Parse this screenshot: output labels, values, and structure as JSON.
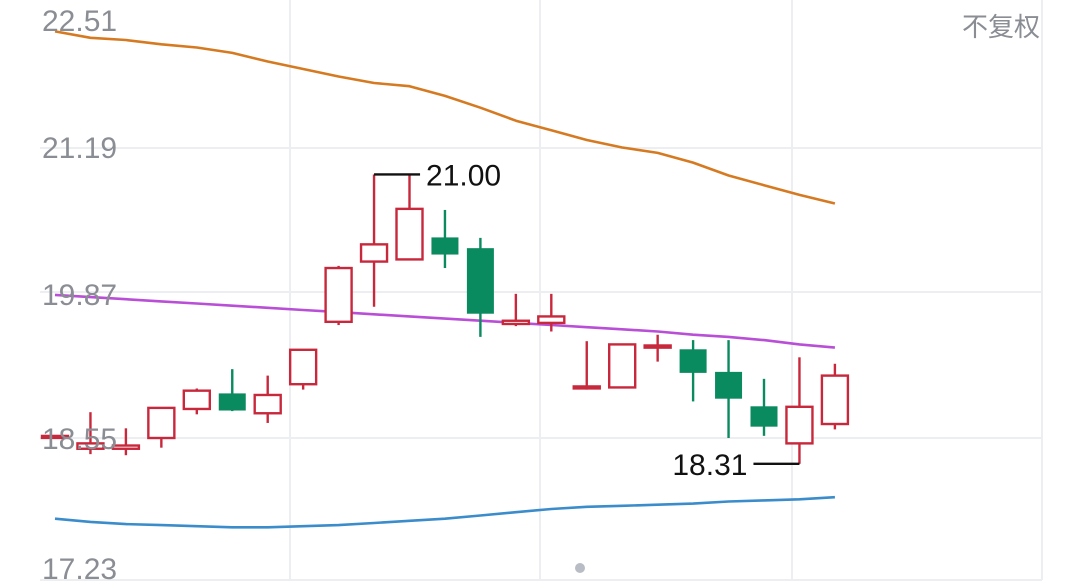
{
  "toggle": {
    "adjust_label": "不复权",
    "adjust_color": "#8a8d94"
  },
  "chart_data": {
    "type": "candlestick",
    "ylim": [
      17.23,
      22.51
    ],
    "yticks": [
      "22.51",
      "21.19",
      "19.87",
      "18.55",
      "17.23"
    ],
    "grid": true,
    "colors": {
      "up": "#c8283c",
      "down": "#0a8a5f",
      "grid": "#eceef2",
      "ma_upper": "#d67a21",
      "ma_middle": "#b84fd6",
      "ma_lower": "#3a8ccb",
      "marker_dot": "#b8bcc4"
    },
    "candles": [
      {
        "o": 18.56,
        "c": 18.56,
        "h": 18.56,
        "l": 18.56
      },
      {
        "o": 18.45,
        "c": 18.5,
        "h": 18.79,
        "l": 18.4
      },
      {
        "o": 18.45,
        "c": 18.48,
        "h": 18.64,
        "l": 18.39
      },
      {
        "o": 18.55,
        "c": 18.83,
        "h": 18.83,
        "l": 18.46
      },
      {
        "o": 18.82,
        "c": 18.99,
        "h": 19.01,
        "l": 18.77
      },
      {
        "o": 18.96,
        "c": 18.81,
        "h": 19.19,
        "l": 18.8
      },
      {
        "o": 18.78,
        "c": 18.95,
        "h": 19.13,
        "l": 18.69
      },
      {
        "o": 19.05,
        "c": 19.37,
        "h": 19.37,
        "l": 19.0
      },
      {
        "o": 19.63,
        "c": 20.13,
        "h": 20.15,
        "l": 19.6
      },
      {
        "o": 20.19,
        "c": 20.35,
        "h": 21.0,
        "l": 19.77
      },
      {
        "o": 20.21,
        "c": 20.68,
        "h": 21.0,
        "l": 20.21
      },
      {
        "o": 20.41,
        "c": 20.26,
        "h": 20.67,
        "l": 20.13
      },
      {
        "o": 20.31,
        "c": 19.71,
        "h": 20.41,
        "l": 19.49
      },
      {
        "o": 19.61,
        "c": 19.64,
        "h": 19.89,
        "l": 19.59
      },
      {
        "o": 19.62,
        "c": 19.68,
        "h": 19.89,
        "l": 19.54
      },
      {
        "o": 19.02,
        "c": 19.02,
        "h": 19.45,
        "l": 19.0
      },
      {
        "o": 19.02,
        "c": 19.42,
        "h": 19.42,
        "l": 19.02
      },
      {
        "o": 19.39,
        "c": 19.41,
        "h": 19.51,
        "l": 19.26
      },
      {
        "o": 19.37,
        "c": 19.16,
        "h": 19.46,
        "l": 18.89
      },
      {
        "o": 19.16,
        "c": 18.92,
        "h": 19.46,
        "l": 18.55
      },
      {
        "o": 18.84,
        "c": 18.66,
        "h": 19.1,
        "l": 18.57
      },
      {
        "o": 18.5,
        "c": 18.84,
        "h": 19.3,
        "l": 18.31
      },
      {
        "o": 18.68,
        "c": 19.13,
        "h": 19.24,
        "l": 18.63
      }
    ],
    "ma_upper": [
      22.33,
      22.27,
      22.25,
      22.21,
      22.18,
      22.13,
      22.05,
      21.98,
      21.91,
      21.85,
      21.82,
      21.73,
      21.62,
      21.5,
      21.41,
      21.32,
      21.25,
      21.2,
      21.11,
      20.99,
      20.9,
      20.81,
      20.73
    ],
    "ma_middle": [
      19.88,
      19.86,
      19.84,
      19.82,
      19.8,
      19.78,
      19.76,
      19.74,
      19.72,
      19.7,
      19.68,
      19.66,
      19.64,
      19.62,
      19.6,
      19.58,
      19.56,
      19.54,
      19.51,
      19.49,
      19.46,
      19.42,
      19.39
    ],
    "ma_lower": [
      17.8,
      17.77,
      17.75,
      17.74,
      17.73,
      17.72,
      17.72,
      17.73,
      17.74,
      17.76,
      17.78,
      17.8,
      17.83,
      17.86,
      17.89,
      17.91,
      17.92,
      17.93,
      17.94,
      17.96,
      17.97,
      17.98,
      18.0
    ],
    "extremes": {
      "high_label": "21.00",
      "low_label": "18.31"
    }
  }
}
